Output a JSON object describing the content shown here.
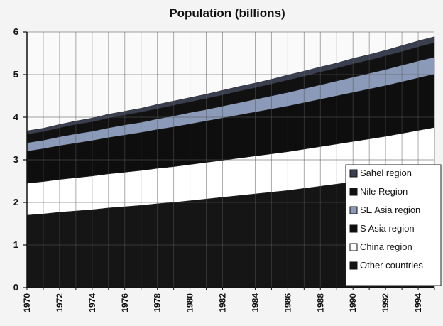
{
  "chart_data": {
    "type": "area",
    "stacked": true,
    "title": "Population (billions)",
    "xlabel": "",
    "ylabel": "",
    "x": [
      1970,
      1971,
      1972,
      1973,
      1974,
      1975,
      1976,
      1977,
      1978,
      1979,
      1980,
      1981,
      1982,
      1983,
      1984,
      1985,
      1986,
      1987,
      1988,
      1989,
      1990,
      1991,
      1992,
      1993,
      1994,
      1995
    ],
    "x_ticks": [
      "1970",
      "1972",
      "1974",
      "1976",
      "1978",
      "1980",
      "1982",
      "1984",
      "1986",
      "1988",
      "1990",
      "1992",
      "1994"
    ],
    "xlim": [
      1970,
      1995
    ],
    "ylim": [
      0,
      6
    ],
    "y_ticks": [
      "0",
      "1",
      "2",
      "3",
      "4",
      "5",
      "6"
    ],
    "grid": true,
    "legend_position": "bottom-right",
    "series": [
      {
        "name": "Other countries",
        "color": "#151515",
        "values": [
          1.7,
          1.73,
          1.77,
          1.8,
          1.83,
          1.87,
          1.9,
          1.93,
          1.97,
          2.0,
          2.04,
          2.08,
          2.12,
          2.16,
          2.2,
          2.24,
          2.28,
          2.33,
          2.38,
          2.43,
          2.48,
          2.53,
          2.58,
          2.64,
          2.7,
          2.76
        ]
      },
      {
        "name": "China region",
        "color": "#ffffff",
        "values": [
          0.75,
          0.76,
          0.77,
          0.78,
          0.79,
          0.8,
          0.81,
          0.82,
          0.83,
          0.84,
          0.85,
          0.86,
          0.87,
          0.88,
          0.89,
          0.9,
          0.91,
          0.92,
          0.93,
          0.94,
          0.95,
          0.96,
          0.97,
          0.98,
          0.99,
          1.0
        ]
      },
      {
        "name": "S. Asia region",
        "color": "#0e0e0e",
        "values": [
          0.75,
          0.77,
          0.79,
          0.81,
          0.83,
          0.85,
          0.87,
          0.89,
          0.91,
          0.93,
          0.95,
          0.97,
          0.99,
          1.01,
          1.03,
          1.05,
          1.07,
          1.09,
          1.11,
          1.13,
          1.15,
          1.17,
          1.19,
          1.21,
          1.23,
          1.25
        ]
      },
      {
        "name": "SE Asia region",
        "color": "#8a9ab8",
        "values": [
          0.2,
          0.2,
          0.21,
          0.22,
          0.22,
          0.23,
          0.24,
          0.24,
          0.25,
          0.26,
          0.27,
          0.27,
          0.28,
          0.29,
          0.3,
          0.31,
          0.32,
          0.33,
          0.34,
          0.35,
          0.36,
          0.37,
          0.38,
          0.39,
          0.4,
          0.4
        ]
      },
      {
        "name": "Nile Region",
        "color": "#111111",
        "values": [
          0.2,
          0.2,
          0.21,
          0.22,
          0.22,
          0.23,
          0.23,
          0.24,
          0.24,
          0.25,
          0.25,
          0.26,
          0.26,
          0.27,
          0.27,
          0.28,
          0.29,
          0.29,
          0.3,
          0.3,
          0.31,
          0.31,
          0.32,
          0.32,
          0.33,
          0.34
        ]
      },
      {
        "name": "Sahel region",
        "color": "#3a3f50",
        "values": [
          0.08,
          0.08,
          0.08,
          0.08,
          0.09,
          0.09,
          0.09,
          0.09,
          0.1,
          0.1,
          0.1,
          0.1,
          0.11,
          0.11,
          0.11,
          0.11,
          0.12,
          0.12,
          0.12,
          0.12,
          0.13,
          0.13,
          0.13,
          0.14,
          0.14,
          0.14
        ]
      }
    ],
    "legend_order": [
      "Sahel region",
      "Nile Region",
      "SE Asia region",
      "S. Asia region",
      "China region",
      "Other countries"
    ],
    "legend_labels": [
      "Sahel region",
      "Nile Region",
      "SE Asia region",
      "S Asia region",
      "China region",
      "Other countries"
    ]
  }
}
